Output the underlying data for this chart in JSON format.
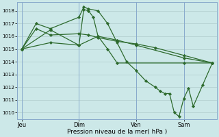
{
  "background_color": "#cce8e8",
  "grid_color": "#b0cccc",
  "line_color": "#2d6a2d",
  "marker_color": "#2d6a2d",
  "xlabel": "Pression niveau de la mer( hPa )",
  "ylim": [
    1009.5,
    1018.7
  ],
  "yticks": [
    1010,
    1011,
    1012,
    1013,
    1014,
    1015,
    1016,
    1017,
    1018
  ],
  "day_labels": [
    "Jeu",
    "Dim",
    "Ven",
    "Sam"
  ],
  "day_positions": [
    0,
    6,
    12,
    17
  ],
  "xlim": [
    -0.5,
    20.5
  ],
  "lines": [
    {
      "x": [
        0,
        1.5,
        3,
        6,
        6.5,
        7,
        8,
        9,
        10,
        11,
        12,
        13,
        14,
        14.5,
        15,
        15.5,
        16,
        16.5,
        17,
        17.5,
        18,
        19,
        20
      ],
      "y": [
        1015.0,
        1017.0,
        1016.6,
        1017.5,
        1018.3,
        1018.15,
        1018.0,
        1017.0,
        1015.5,
        1014.0,
        1013.3,
        1012.5,
        1012.0,
        1011.7,
        1011.5,
        1011.5,
        1010.0,
        1009.7,
        1011.1,
        1011.9,
        1010.5,
        1012.2,
        1013.9
      ]
    },
    {
      "x": [
        0,
        1.5,
        3,
        6,
        7,
        8,
        10,
        12,
        14,
        17,
        20
      ],
      "y": [
        1015.0,
        1016.6,
        1016.1,
        1016.2,
        1016.1,
        1015.9,
        1015.6,
        1015.4,
        1015.1,
        1014.5,
        1013.9
      ]
    },
    {
      "x": [
        0,
        3,
        6,
        8,
        10,
        12,
        17,
        20
      ],
      "y": [
        1015.0,
        1016.5,
        1015.3,
        1016.0,
        1015.7,
        1015.3,
        1014.3,
        1013.9
      ]
    },
    {
      "x": [
        0,
        3,
        6,
        6.5,
        7,
        7.5,
        8,
        9,
        10,
        17,
        20
      ],
      "y": [
        1015.0,
        1015.5,
        1015.3,
        1018.1,
        1018.0,
        1017.5,
        1016.0,
        1015.0,
        1013.9,
        1013.9,
        1013.9
      ]
    }
  ]
}
